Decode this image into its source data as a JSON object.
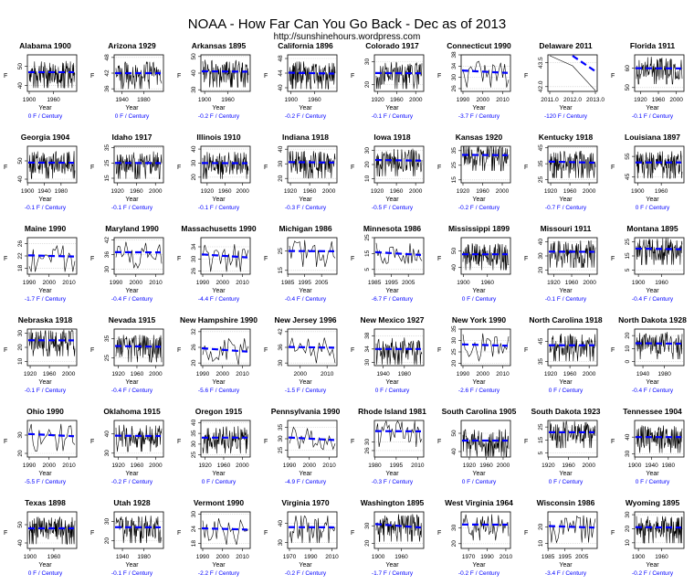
{
  "header": {
    "title": "NOAA - How Far Can You Go Back - Dec as of 2013",
    "subtitle": "http://sunshinehours.wordpress.com"
  },
  "colors": {
    "trend": "#0000ff",
    "series": "#000000",
    "grid": "#cccccc"
  },
  "chart_data": {
    "type": "line",
    "title": "NOAA - How Far Can You Go Back - Dec as of 2013",
    "xlabel": "Year",
    "ylabel": "F",
    "grid": true,
    "panels": [
      {
        "state": "Alabama 1900",
        "start": 1900,
        "end": 2013,
        "xticks": [
          "1900",
          "1960"
        ],
        "yticks": [
          "40",
          "50"
        ],
        "ylim": [
          37,
          56
        ],
        "mean": 47,
        "trend": "0 F / Century"
      },
      {
        "state": "Arizona 1929",
        "start": 1929,
        "end": 2013,
        "xticks": [
          "1940",
          "1980"
        ],
        "yticks": [
          "36",
          "42",
          "48"
        ],
        "ylim": [
          35,
          49
        ],
        "mean": 42,
        "trend": "0 F / Century"
      },
      {
        "state": "Arkansas 1895",
        "start": 1895,
        "end": 2013,
        "xticks": [
          "1900",
          "1960"
        ],
        "yticks": [
          "30",
          "40",
          "50"
        ],
        "ylim": [
          29,
          51
        ],
        "mean": 41,
        "trend": "-0.2 F / Century"
      },
      {
        "state": "California 1896",
        "start": 1896,
        "end": 2013,
        "xticks": [
          "1900",
          "1960"
        ],
        "yticks": [
          "40",
          "44",
          "48"
        ],
        "ylim": [
          39,
          49
        ],
        "mean": 44,
        "trend": "-0.2 F / Century"
      },
      {
        "state": "Colorado 1917",
        "start": 1917,
        "end": 2013,
        "xticks": [
          "1920",
          "1960",
          "2000"
        ],
        "yticks": [
          "20",
          "30"
        ],
        "ylim": [
          17,
          33
        ],
        "mean": 25,
        "trend": "-0.1 F / Century"
      },
      {
        "state": "Connecticut 1990",
        "start": 1990,
        "end": 2013,
        "xticks": [
          "1990",
          "2000",
          "2010"
        ],
        "yticks": [
          "26",
          "30",
          "34",
          "38"
        ],
        "ylim": [
          25,
          38
        ],
        "mean": 32,
        "trend": "-3.7 F / Century"
      },
      {
        "state": "Delaware 2011",
        "start": 2011,
        "end": 2013,
        "xticks": [
          "2011.0",
          "2012.0",
          "2013.0"
        ],
        "yticks": [
          "42.0",
          "43.5"
        ],
        "ylim": [
          41.7,
          44.0
        ],
        "mean": 43.5,
        "trend": "-120 F / Century"
      },
      {
        "state": "Florida 1911",
        "start": 1911,
        "end": 2013,
        "xticks": [
          "1920",
          "1960",
          "2000"
        ],
        "yticks": [
          "50",
          "60"
        ],
        "ylim": [
          48,
          67
        ],
        "mean": 60,
        "trend": "-0.1 F / Century"
      },
      {
        "state": "Georgia 1904",
        "start": 1904,
        "end": 2013,
        "xticks": [
          "1900",
          "1940",
          "1980"
        ],
        "yticks": [
          "40",
          "50"
        ],
        "ylim": [
          38,
          58
        ],
        "mean": 49,
        "trend": "-0.1 F / Century"
      },
      {
        "state": "Idaho 1917",
        "start": 1917,
        "end": 2013,
        "xticks": [
          "1920",
          "1960",
          "2000"
        ],
        "yticks": [
          "15",
          "25",
          "35"
        ],
        "ylim": [
          12,
          36
        ],
        "mean": 25,
        "trend": "-0.1 F / Century"
      },
      {
        "state": "Illinois 1910",
        "start": 1910,
        "end": 2013,
        "xticks": [
          "1920",
          "1960",
          "2000"
        ],
        "yticks": [
          "20",
          "30",
          "40"
        ],
        "ylim": [
          16,
          42
        ],
        "mean": 30,
        "trend": "-0.1 F / Century"
      },
      {
        "state": "Indiana 1918",
        "start": 1918,
        "end": 2013,
        "xticks": [
          "1920",
          "1960",
          "2000"
        ],
        "yticks": [
          "20",
          "30",
          "40"
        ],
        "ylim": [
          17,
          42
        ],
        "mean": 31,
        "trend": "-0.3 F / Century"
      },
      {
        "state": "Iowa 1918",
        "start": 1918,
        "end": 2013,
        "xticks": [
          "1920",
          "1960",
          "2000"
        ],
        "yticks": [
          "10",
          "20",
          "30"
        ],
        "ylim": [
          7,
          33
        ],
        "mean": 23,
        "trend": "-0.5 F / Century"
      },
      {
        "state": "Kansas 1920",
        "start": 1920,
        "end": 2013,
        "xticks": [
          "1920",
          "1960",
          "2000"
        ],
        "yticks": [
          "15",
          "25",
          "35"
        ],
        "ylim": [
          13,
          38
        ],
        "mean": 32,
        "trend": "-0.2 F / Century"
      },
      {
        "state": "Kentucky 1918",
        "start": 1918,
        "end": 2013,
        "xticks": [
          "1920",
          "1960",
          "2000"
        ],
        "yticks": [
          "25",
          "35",
          "45"
        ],
        "ylim": [
          23,
          46
        ],
        "mean": 36,
        "trend": "-0.7 F / Century"
      },
      {
        "state": "Louisiana 1897",
        "start": 1897,
        "end": 2013,
        "xticks": [
          "1900",
          "1960"
        ],
        "yticks": [
          "45",
          "55"
        ],
        "ylim": [
          42,
          60
        ],
        "mean": 52,
        "trend": "0 F / Century"
      },
      {
        "state": "Maine 1990",
        "start": 1990,
        "end": 2013,
        "xticks": [
          "1990",
          "2000",
          "2010"
        ],
        "yticks": [
          "18",
          "22",
          "26"
        ],
        "ylim": [
          16,
          28
        ],
        "mean": 22,
        "trend": "-1.7 F / Century"
      },
      {
        "state": "Maryland 1990",
        "start": 1990,
        "end": 2013,
        "xticks": [
          "1990",
          "2000",
          "2010"
        ],
        "yticks": [
          "30",
          "36",
          "42"
        ],
        "ylim": [
          28,
          43
        ],
        "mean": 37,
        "trend": "-0.4 F / Century"
      },
      {
        "state": "Massachusetts 1990",
        "start": 1990,
        "end": 2013,
        "xticks": [
          "1990",
          "2000",
          "2010"
        ],
        "yticks": [
          "26",
          "30",
          "34"
        ],
        "ylim": [
          25,
          37
        ],
        "mean": 31,
        "trend": "-4.4 F / Century"
      },
      {
        "state": "Michigan 1986",
        "start": 1986,
        "end": 2013,
        "xticks": [
          "1985",
          "1995",
          "2005"
        ],
        "yticks": [
          "15",
          "25"
        ],
        "ylim": [
          13,
          32
        ],
        "mean": 25,
        "trend": "-0.4 F / Century"
      },
      {
        "state": "Minnesota 1986",
        "start": 1986,
        "end": 2013,
        "xticks": [
          "1985",
          "1995",
          "2005"
        ],
        "yticks": [
          "5",
          "15",
          "25"
        ],
        "ylim": [
          2,
          25
        ],
        "mean": 15,
        "trend": "-6.7 F / Century"
      },
      {
        "state": "Mississippi 1899",
        "start": 1899,
        "end": 2013,
        "xticks": [
          "1900",
          "1960"
        ],
        "yticks": [
          "40",
          "50"
        ],
        "ylim": [
          36,
          58
        ],
        "mean": 48,
        "trend": "0 F / Century"
      },
      {
        "state": "Missouri 1911",
        "start": 1911,
        "end": 2013,
        "xticks": [
          "1920",
          "1960",
          "2000"
        ],
        "yticks": [
          "20",
          "30",
          "40"
        ],
        "ylim": [
          17,
          43
        ],
        "mean": 33,
        "trend": "-0.1 F / Century"
      },
      {
        "state": "Montana 1895",
        "start": 1895,
        "end": 2013,
        "xticks": [
          "1900",
          "1960"
        ],
        "yticks": [
          "5",
          "15",
          "25"
        ],
        "ylim": [
          2,
          28
        ],
        "mean": 20,
        "trend": "-0.4 F / Century"
      },
      {
        "state": "Nebraska 1918",
        "start": 1918,
        "end": 2013,
        "xticks": [
          "1920",
          "1960",
          "2000"
        ],
        "yticks": [
          "10",
          "20",
          "30"
        ],
        "ylim": [
          7,
          33
        ],
        "mean": 25,
        "trend": "-0.1 F / Century"
      },
      {
        "state": "Nevada 1915",
        "start": 1915,
        "end": 2013,
        "xticks": [
          "1920",
          "1960",
          "2000"
        ],
        "yticks": [
          "25",
          "35"
        ],
        "ylim": [
          21,
          40
        ],
        "mean": 31,
        "trend": "-0.4 F / Century"
      },
      {
        "state": "New Hampshire 1990",
        "start": 1990,
        "end": 2013,
        "xticks": [
          "1990",
          "2000",
          "2010"
        ],
        "yticks": [
          "20",
          "26",
          "32"
        ],
        "ylim": [
          19,
          33
        ],
        "mean": 25,
        "trend": "-5.6 F / Century"
      },
      {
        "state": "New Jersey 1996",
        "start": 1996,
        "end": 2013,
        "xticks": [
          "2000",
          "2010"
        ],
        "yticks": [
          "30",
          "36",
          "42"
        ],
        "ylim": [
          29,
          43
        ],
        "mean": 36,
        "trend": "-1.5 F / Century"
      },
      {
        "state": "New Mexico 1927",
        "start": 1927,
        "end": 2013,
        "xticks": [
          "1940",
          "1980"
        ],
        "yticks": [
          "30",
          "34",
          "38"
        ],
        "ylim": [
          29,
          40
        ],
        "mean": 34,
        "trend": "0 F / Century"
      },
      {
        "state": "New York 1990",
        "start": 1990,
        "end": 2013,
        "xticks": [
          "1990",
          "2000",
          "2010"
        ],
        "yticks": [
          "20",
          "25",
          "30",
          "35"
        ],
        "ylim": [
          19,
          35
        ],
        "mean": 28,
        "trend": "-2.6 F / Century"
      },
      {
        "state": "North Carolina 1918",
        "start": 1918,
        "end": 2013,
        "xticks": [
          "1920",
          "1960",
          "2000"
        ],
        "yticks": [
          "35",
          "45"
        ],
        "ylim": [
          33,
          51
        ],
        "mean": 43,
        "trend": "0 F / Century"
      },
      {
        "state": "North Dakota 1928",
        "start": 1928,
        "end": 2013,
        "xticks": [
          "1940",
          "1980"
        ],
        "yticks": [
          "0",
          "10",
          "20"
        ],
        "ylim": [
          -3,
          25
        ],
        "mean": 14,
        "trend": "-0.4 F / Century"
      },
      {
        "state": "Ohio 1990",
        "start": 1990,
        "end": 2013,
        "xticks": [
          "1990",
          "2000",
          "2010"
        ],
        "yticks": [
          "20",
          "30"
        ],
        "ylim": [
          18,
          38
        ],
        "mean": 30,
        "trend": "-5.5 F / Century"
      },
      {
        "state": "Oklahoma 1915",
        "start": 1915,
        "end": 2013,
        "xticks": [
          "1920",
          "1960",
          "2000"
        ],
        "yticks": [
          "30",
          "40"
        ],
        "ylim": [
          28,
          47
        ],
        "mean": 39,
        "trend": "-0.2 F / Century"
      },
      {
        "state": "Oregon 1915",
        "start": 1915,
        "end": 2013,
        "xticks": [
          "1920",
          "1960",
          "2000"
        ],
        "yticks": [
          "25",
          "30",
          "35",
          "40"
        ],
        "ylim": [
          24,
          41
        ],
        "mean": 33,
        "trend": "0 F / Century"
      },
      {
        "state": "Pennsylvania 1990",
        "start": 1990,
        "end": 2013,
        "xticks": [
          "1990",
          "2000",
          "2010"
        ],
        "yticks": [
          "25",
          "30",
          "35"
        ],
        "ylim": [
          22,
          38
        ],
        "mean": 30,
        "trend": "-4.9 F / Century"
      },
      {
        "state": "Rhode Island 1981",
        "start": 1981,
        "end": 2013,
        "xticks": [
          "1980",
          "1995",
          "2010"
        ],
        "yticks": [
          "26",
          "30"
        ],
        "ylim": [
          23,
          40
        ],
        "mean": 35,
        "trend": "-0.3 F / Century"
      },
      {
        "state": "South Carolina 1905",
        "start": 1905,
        "end": 2013,
        "xticks": [
          "1920",
          "1960",
          "2000"
        ],
        "yticks": [
          "40",
          "50"
        ],
        "ylim": [
          37,
          57
        ],
        "mean": 46,
        "trend": "0 F / Century"
      },
      {
        "state": "South Dakota 1923",
        "start": 1923,
        "end": 2013,
        "xticks": [
          "1920",
          "1960",
          "2000"
        ],
        "yticks": [
          "5",
          "15",
          "25"
        ],
        "ylim": [
          2,
          30
        ],
        "mean": 21,
        "trend": "0 F / Century"
      },
      {
        "state": "Tennessee 1904",
        "start": 1904,
        "end": 2013,
        "xticks": [
          "1900",
          "1940",
          "1980"
        ],
        "yticks": [
          "30",
          "40"
        ],
        "ylim": [
          28,
          50
        ],
        "mean": 40,
        "trend": "0 F / Century"
      },
      {
        "state": "Texas 1898",
        "start": 1898,
        "end": 2013,
        "xticks": [
          "1900",
          "1960"
        ],
        "yticks": [
          "40",
          "50"
        ],
        "ylim": [
          37,
          57
        ],
        "mean": 48,
        "trend": "0 F / Century"
      },
      {
        "state": "Utah 1928",
        "start": 1928,
        "end": 2013,
        "xticks": [
          "1940",
          "1980"
        ],
        "yticks": [
          "20",
          "30"
        ],
        "ylim": [
          16,
          35
        ],
        "mean": 27,
        "trend": "-0.1 F / Century"
      },
      {
        "state": "Vermont 1990",
        "start": 1990,
        "end": 2013,
        "xticks": [
          "1990",
          "2000",
          "2010"
        ],
        "yticks": [
          "18",
          "24",
          "30"
        ],
        "ylim": [
          16,
          31
        ],
        "mean": 24,
        "trend": "-2.2 F / Century"
      },
      {
        "state": "Virginia 1970",
        "start": 1970,
        "end": 2013,
        "xticks": [
          "1970",
          "1990",
          "2010"
        ],
        "yticks": [
          "30",
          "40"
        ],
        "ylim": [
          27,
          46
        ],
        "mean": 38,
        "trend": "-0.2 F / Century"
      },
      {
        "state": "Washington 1895",
        "start": 1895,
        "end": 2013,
        "xticks": [
          "1900",
          "1960"
        ],
        "yticks": [
          "20",
          "30"
        ],
        "ylim": [
          17,
          38
        ],
        "mean": 30,
        "trend": "-1.7 F / Century"
      },
      {
        "state": "West Virginia 1964",
        "start": 1964,
        "end": 2013,
        "xticks": [
          "1970",
          "1990",
          "2010"
        ],
        "yticks": [
          "20",
          "30"
        ],
        "ylim": [
          17,
          40
        ],
        "mean": 32,
        "trend": "-0.2 F / Century"
      },
      {
        "state": "Wisconsin 1986",
        "start": 1986,
        "end": 2013,
        "xticks": [
          "1985",
          "1995",
          "2005"
        ],
        "yticks": [
          "10",
          "20"
        ],
        "ylim": [
          7,
          29
        ],
        "mean": 20,
        "trend": "-3.4 F / Century"
      },
      {
        "state": "Wyoming 1895",
        "start": 1895,
        "end": 2013,
        "xticks": [
          "1900",
          "1960"
        ],
        "yticks": [
          "10",
          "20",
          "30"
        ],
        "ylim": [
          6,
          32
        ],
        "mean": 21,
        "trend": "-0.2 F / Century"
      }
    ]
  }
}
